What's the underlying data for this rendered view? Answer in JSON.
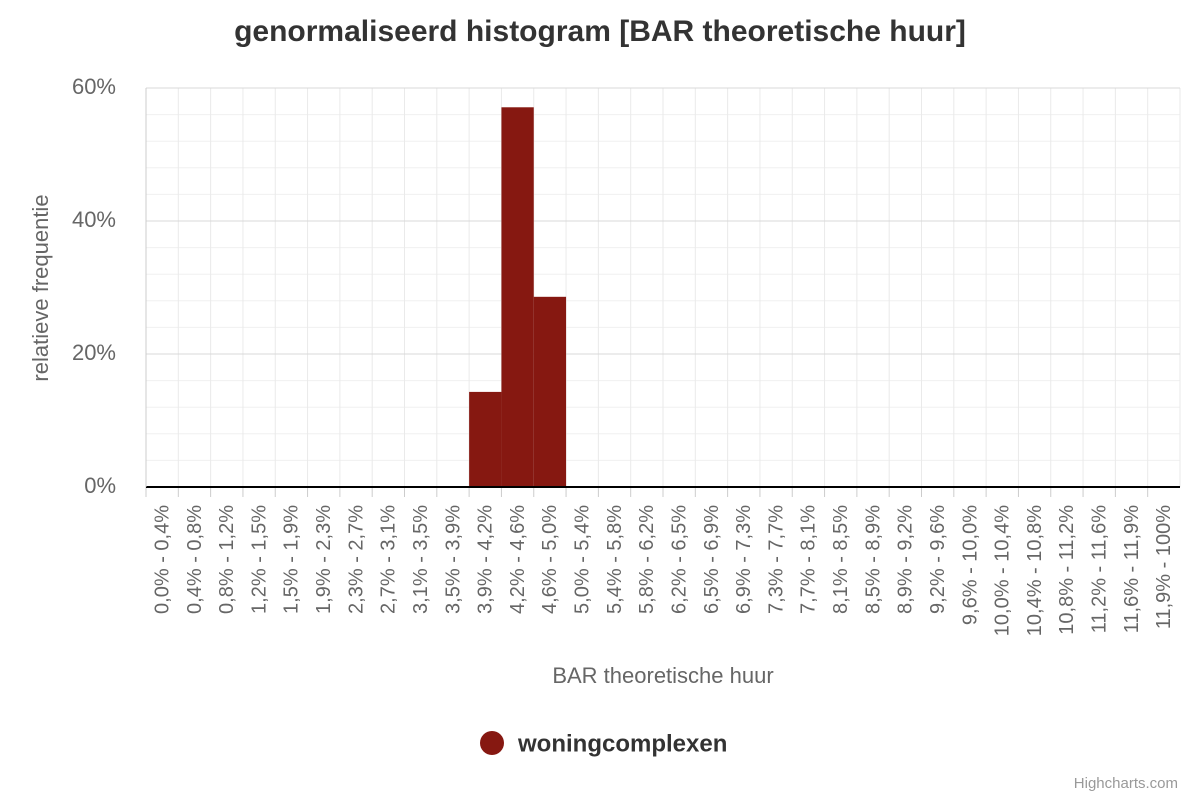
{
  "chart_data": {
    "type": "bar",
    "title": "genormaliseerd histogram [BAR theoretische huur]",
    "x_label": "BAR theoretische huur",
    "y_label": "relatieve frequentie",
    "categories": [
      "0,0% - 0,4%",
      "0,4% - 0,8%",
      "0,8% - 1,2%",
      "1,2% - 1,5%",
      "1,5% - 1,9%",
      "1,9% - 2,3%",
      "2,3% - 2,7%",
      "2,7% - 3,1%",
      "3,1% - 3,5%",
      "3,5% - 3,9%",
      "3,9% - 4,2%",
      "4,2% - 4,6%",
      "4,6% - 5,0%",
      "5,0% - 5,4%",
      "5,4% - 5,8%",
      "5,8% - 6,2%",
      "6,2% - 6,5%",
      "6,5% - 6,9%",
      "6,9% - 7,3%",
      "7,3% - 7,7%",
      "7,7% - 8,1%",
      "8,1% - 8,5%",
      "8,5% - 8,9%",
      "8,9% - 9,2%",
      "9,2% - 9,6%",
      "9,6% - 10,0%",
      "10,0% - 10,4%",
      "10,4% - 10,8%",
      "10,8% - 11,2%",
      "11,2% - 11,6%",
      "11,6% - 11,9%",
      "11,9% - 100%"
    ],
    "series": [
      {
        "name": "woningcomplexen",
        "color": "#861811",
        "values": [
          0,
          0,
          0,
          0,
          0,
          0,
          0,
          0,
          0,
          0,
          14.3,
          57.1,
          28.6,
          0,
          0,
          0,
          0,
          0,
          0,
          0,
          0,
          0,
          0,
          0,
          0,
          0,
          0,
          0,
          0,
          0,
          0,
          0
        ]
      }
    ],
    "ylim": [
      0,
      60
    ],
    "yticks": [
      {
        "value": 0,
        "label": "0%"
      },
      {
        "value": 20,
        "label": "20%"
      },
      {
        "value": 40,
        "label": "40%"
      },
      {
        "value": 60,
        "label": "60%"
      }
    ],
    "minor_yticks": [
      4,
      8,
      12,
      16,
      24,
      28,
      32,
      36,
      44,
      48,
      52,
      56
    ],
    "grid": true,
    "legend": "bottom",
    "credits": "Highcharts.com"
  }
}
